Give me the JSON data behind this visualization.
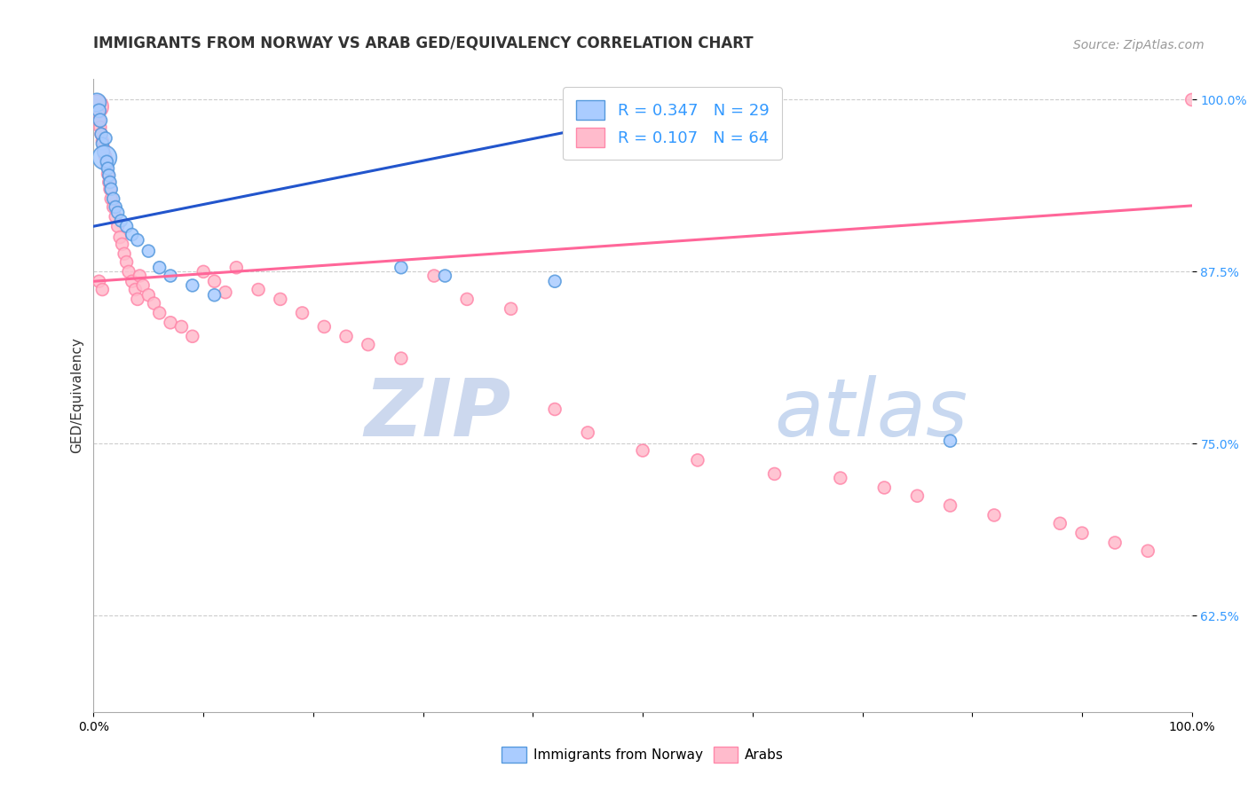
{
  "title": "IMMIGRANTS FROM NORWAY VS ARAB GED/EQUIVALENCY CORRELATION CHART",
  "source": "Source: ZipAtlas.com",
  "ylabel": "GED/Equivalency",
  "xlim": [
    0.0,
    1.0
  ],
  "ylim": [
    0.555,
    1.015
  ],
  "yticks": [
    0.625,
    0.75,
    0.875,
    1.0
  ],
  "ytick_labels": [
    "62.5%",
    "75.0%",
    "87.5%",
    "100.0%"
  ],
  "xticks": [
    0.0,
    0.1,
    0.2,
    0.3,
    0.4,
    0.5,
    0.6,
    0.7,
    0.8,
    0.9,
    1.0
  ],
  "xtick_labels": [
    "0.0%",
    "",
    "",
    "",
    "",
    "",
    "",
    "",
    "",
    "",
    "100.0%"
  ],
  "norway_R": 0.347,
  "norway_N": 29,
  "arab_R": 0.107,
  "arab_N": 64,
  "norway_color": "#aaccff",
  "norway_edge_color": "#5599dd",
  "arab_color": "#ffbbcc",
  "arab_edge_color": "#ff88aa",
  "norway_line_color": "#2255cc",
  "arab_line_color": "#ff6699",
  "legend_norway_label": "Immigrants from Norway",
  "legend_arab_label": "Arabs",
  "background_color": "#ffffff",
  "norway_line_x0": 0.0,
  "norway_line_x1": 0.44,
  "norway_line_y0": 0.908,
  "norway_line_y1": 0.978,
  "arab_line_x0": 0.0,
  "arab_line_x1": 1.0,
  "arab_line_y0": 0.868,
  "arab_line_y1": 0.923,
  "norway_scatter_x": [
    0.003,
    0.005,
    0.006,
    0.007,
    0.008,
    0.009,
    0.01,
    0.011,
    0.012,
    0.013,
    0.014,
    0.015,
    0.016,
    0.018,
    0.02,
    0.022,
    0.025,
    0.03,
    0.035,
    0.04,
    0.05,
    0.06,
    0.07,
    0.09,
    0.11,
    0.28,
    0.32,
    0.42,
    0.78
  ],
  "norway_scatter_y": [
    0.998,
    0.992,
    0.985,
    0.975,
    0.968,
    0.962,
    0.958,
    0.972,
    0.955,
    0.95,
    0.945,
    0.94,
    0.935,
    0.928,
    0.922,
    0.918,
    0.912,
    0.908,
    0.902,
    0.898,
    0.89,
    0.878,
    0.872,
    0.865,
    0.858,
    0.878,
    0.872,
    0.868,
    0.752
  ],
  "norway_scatter_sizes": [
    220,
    120,
    120,
    100,
    100,
    100,
    380,
    100,
    100,
    100,
    100,
    100,
    100,
    100,
    100,
    100,
    100,
    100,
    100,
    100,
    100,
    100,
    100,
    100,
    100,
    100,
    100,
    100,
    100
  ],
  "arab_scatter_x": [
    0.003,
    0.004,
    0.005,
    0.006,
    0.007,
    0.008,
    0.009,
    0.01,
    0.011,
    0.012,
    0.013,
    0.014,
    0.015,
    0.016,
    0.018,
    0.02,
    0.022,
    0.024,
    0.026,
    0.028,
    0.03,
    0.032,
    0.035,
    0.038,
    0.04,
    0.042,
    0.045,
    0.05,
    0.055,
    0.06,
    0.07,
    0.08,
    0.09,
    0.1,
    0.11,
    0.12,
    0.13,
    0.15,
    0.17,
    0.19,
    0.21,
    0.23,
    0.25,
    0.28,
    0.31,
    0.34,
    0.38,
    0.42,
    0.45,
    0.5,
    0.55,
    0.62,
    0.68,
    0.72,
    0.75,
    0.78,
    0.82,
    0.88,
    0.9,
    0.93,
    0.96,
    1.0,
    0.005,
    0.008
  ],
  "arab_scatter_y": [
    0.995,
    0.99,
    0.985,
    0.98,
    0.975,
    0.97,
    0.965,
    0.96,
    0.958,
    0.952,
    0.946,
    0.94,
    0.935,
    0.928,
    0.922,
    0.915,
    0.908,
    0.9,
    0.895,
    0.888,
    0.882,
    0.875,
    0.868,
    0.862,
    0.855,
    0.872,
    0.865,
    0.858,
    0.852,
    0.845,
    0.838,
    0.835,
    0.828,
    0.875,
    0.868,
    0.86,
    0.878,
    0.862,
    0.855,
    0.845,
    0.835,
    0.828,
    0.822,
    0.812,
    0.872,
    0.855,
    0.848,
    0.775,
    0.758,
    0.745,
    0.738,
    0.728,
    0.725,
    0.718,
    0.712,
    0.705,
    0.698,
    0.692,
    0.685,
    0.678,
    0.672,
    1.0,
    0.868,
    0.862
  ],
  "arab_scatter_sizes": [
    350,
    100,
    100,
    100,
    100,
    100,
    100,
    100,
    100,
    100,
    100,
    100,
    100,
    100,
    100,
    100,
    100,
    100,
    100,
    100,
    100,
    100,
    100,
    100,
    100,
    100,
    100,
    100,
    100,
    100,
    100,
    100,
    100,
    100,
    100,
    100,
    100,
    100,
    100,
    100,
    100,
    100,
    100,
    100,
    100,
    100,
    100,
    100,
    100,
    100,
    100,
    100,
    100,
    100,
    100,
    100,
    100,
    100,
    100,
    100,
    100,
    100,
    100,
    100
  ],
  "watermark_zip_color": "#ccd8ee",
  "watermark_atlas_color": "#c8d8f0",
  "title_fontsize": 12,
  "source_fontsize": 10,
  "axis_label_fontsize": 11,
  "tick_fontsize": 10,
  "legend_fontsize": 13
}
